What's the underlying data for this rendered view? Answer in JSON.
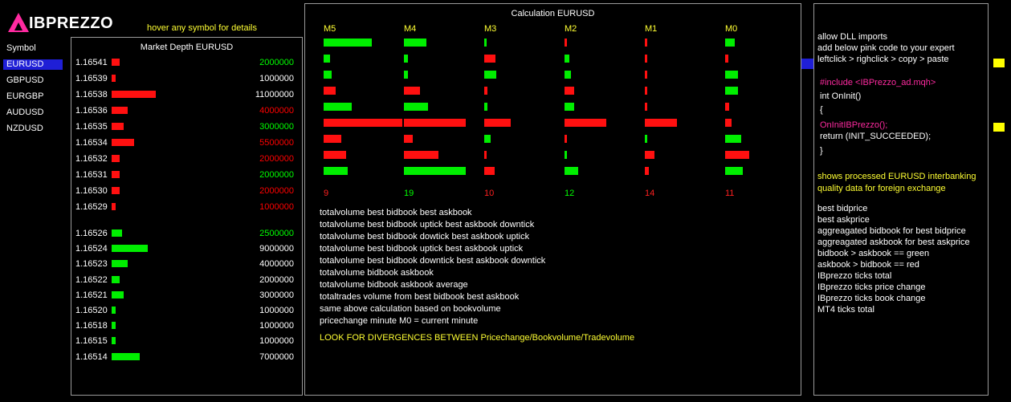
{
  "brand": {
    "name": "IBPREZZO"
  },
  "hint": "hover any symbol for details",
  "symbols": {
    "header": "Symbol",
    "items": [
      "EURUSD",
      "GBPUSD",
      "EURGBP",
      "AUDUSD",
      "NZDUSD"
    ],
    "selected": "EURUSD"
  },
  "depth": {
    "title": "Market Depth EURUSD",
    "asks": [
      {
        "price": "1.16541",
        "volume": "2000000",
        "color": "green",
        "bar": 2
      },
      {
        "price": "1.16539",
        "volume": "1000000",
        "color": "white",
        "bar": 1
      },
      {
        "price": "1.16538",
        "volume": "11000000",
        "color": "white",
        "bar": 11
      },
      {
        "price": "1.16536",
        "volume": "4000000",
        "color": "red",
        "bar": 4
      },
      {
        "price": "1.16535",
        "volume": "3000000",
        "color": "green",
        "bar": 3
      },
      {
        "price": "1.16534",
        "volume": "5500000",
        "color": "red",
        "bar": 5.5
      },
      {
        "price": "1.16532",
        "volume": "2000000",
        "color": "red",
        "bar": 2
      },
      {
        "price": "1.16531",
        "volume": "2000000",
        "color": "green",
        "bar": 2
      },
      {
        "price": "1.16530",
        "volume": "2000000",
        "color": "red",
        "bar": 2
      },
      {
        "price": "1.16529",
        "volume": "1000000",
        "color": "red",
        "bar": 1
      }
    ],
    "bids": [
      {
        "price": "1.16526",
        "volume": "2500000",
        "color": "green",
        "bar": 2.5
      },
      {
        "price": "1.16524",
        "volume": "9000000",
        "color": "white",
        "bar": 9
      },
      {
        "price": "1.16523",
        "volume": "4000000",
        "color": "white",
        "bar": 4
      },
      {
        "price": "1.16522",
        "volume": "2000000",
        "color": "white",
        "bar": 2
      },
      {
        "price": "1.16521",
        "volume": "3000000",
        "color": "white",
        "bar": 3
      },
      {
        "price": "1.16520",
        "volume": "1000000",
        "color": "white",
        "bar": 1
      },
      {
        "price": "1.16518",
        "volume": "1000000",
        "color": "white",
        "bar": 1
      },
      {
        "price": "1.16515",
        "volume": "1000000",
        "color": "white",
        "bar": 1
      },
      {
        "price": "1.16514",
        "volume": "7000000",
        "color": "white",
        "bar": 7
      }
    ]
  },
  "calc": {
    "title": "Calculation EURUSD",
    "columns": [
      {
        "label": "M5",
        "total": "9",
        "total_color": "red",
        "bars": [
          {
            "c": "g",
            "v": 60
          },
          {
            "c": "g",
            "v": 8
          },
          {
            "c": "g",
            "v": 10
          },
          {
            "c": "r",
            "v": 15
          },
          {
            "c": "g",
            "v": 35
          },
          {
            "c": "r",
            "v": 98
          },
          {
            "c": "r",
            "v": 22
          },
          {
            "c": "r",
            "v": 28
          },
          {
            "c": "g",
            "v": 30
          }
        ]
      },
      {
        "label": "M4",
        "total": "19",
        "total_color": "green",
        "bars": [
          {
            "c": "g",
            "v": 28
          },
          {
            "c": "g",
            "v": 5
          },
          {
            "c": "g",
            "v": 5
          },
          {
            "c": "r",
            "v": 20
          },
          {
            "c": "g",
            "v": 30
          },
          {
            "c": "r",
            "v": 77
          },
          {
            "c": "r",
            "v": 11
          },
          {
            "c": "r",
            "v": 43
          },
          {
            "c": "g",
            "v": 77
          }
        ]
      },
      {
        "label": "M3",
        "total": "10",
        "total_color": "red",
        "bars": [
          {
            "c": "g",
            "v": 3
          },
          {
            "c": "r",
            "v": 14
          },
          {
            "c": "g",
            "v": 15
          },
          {
            "c": "r",
            "v": 4
          },
          {
            "c": "g",
            "v": 4
          },
          {
            "c": "r",
            "v": 33
          },
          {
            "c": "g",
            "v": 8
          },
          {
            "c": "r",
            "v": 3
          },
          {
            "c": "r",
            "v": 13
          }
        ]
      },
      {
        "label": "M2",
        "total": "12",
        "total_color": "green",
        "bars": [
          {
            "c": "r",
            "v": 3
          },
          {
            "c": "g",
            "v": 6
          },
          {
            "c": "g",
            "v": 8
          },
          {
            "c": "r",
            "v": 12
          },
          {
            "c": "g",
            "v": 12
          },
          {
            "c": "r",
            "v": 52
          },
          {
            "c": "r",
            "v": 3
          },
          {
            "c": "g",
            "v": 3
          },
          {
            "c": "g",
            "v": 17
          }
        ]
      },
      {
        "label": "M1",
        "total": "14",
        "total_color": "red",
        "bars": [
          {
            "c": "r",
            "v": 3
          },
          {
            "c": "r",
            "v": 3
          },
          {
            "c": "r",
            "v": 3
          },
          {
            "c": "r",
            "v": 3
          },
          {
            "c": "r",
            "v": 3
          },
          {
            "c": "r",
            "v": 40
          },
          {
            "c": "g",
            "v": 3
          },
          {
            "c": "r",
            "v": 12
          },
          {
            "c": "r",
            "v": 5
          }
        ]
      },
      {
        "label": "M0",
        "total": "11",
        "total_color": "red",
        "bars": [
          {
            "c": "g",
            "v": 12
          },
          {
            "c": "r",
            "v": 4
          },
          {
            "c": "g",
            "v": 16
          },
          {
            "c": "g",
            "v": 16
          },
          {
            "c": "r",
            "v": 5
          },
          {
            "c": "r",
            "v": 8
          },
          {
            "c": "g",
            "v": 20
          },
          {
            "c": "r",
            "v": 30
          },
          {
            "c": "g",
            "v": 22
          }
        ]
      }
    ],
    "legend": [
      "totalvolume best bidbook best askbook",
      "totalvolume best bidbook uptick best askbook downtick",
      "totalvolume best bidbook dowtick best askbook uptick",
      "totalvolume best bidbook uptick best askbook uptick",
      "totalvolume best bidbook downtick best askbook downtick",
      "totalvolume bidbook askbook",
      "totalvolume bidbook askbook average",
      "totaltrades volume from best bidbook best askbook",
      "same above calculation based on bookvolume",
      "pricechange minute M0 = current minute"
    ],
    "warning": "LOOK FOR DIVERGENCES BETWEEN Pricechange/Bookvolume/Tradevolume"
  },
  "info": {
    "setup": [
      "allow DLL imports",
      "add below pink code to your expert",
      "leftclick > righclick > copy > paste"
    ],
    "code_include": "#include <IBPrezzo_ad.mqh>",
    "code_oninit": "int OnInit()",
    "code_brace_open": "{",
    "code_call": "OnInitIBPrezzo();",
    "code_return": "return (INIT_SUCCEEDED);",
    "code_brace_close": "}",
    "description": [
      "shows processed  EURUSD  interbanking",
      "quality data for foreign exchange"
    ],
    "features": [
      "best bidprice",
      "best askprice",
      "aggreagated bidbook for best bidprice",
      "aggreagated askbook for best askprice",
      "bidbook > askbook == green",
      "askbook > bidbook == red",
      "IBprezzo ticks total",
      "IBprezzo ticks price change",
      "IBprezzo ticks book change",
      "MT4 ticks total"
    ]
  },
  "colors": {
    "green": "#00ee00",
    "red": "#ff1010",
    "yellow": "#ffff33",
    "pink": "#ff2aa0",
    "select": "#1f1fd6"
  }
}
